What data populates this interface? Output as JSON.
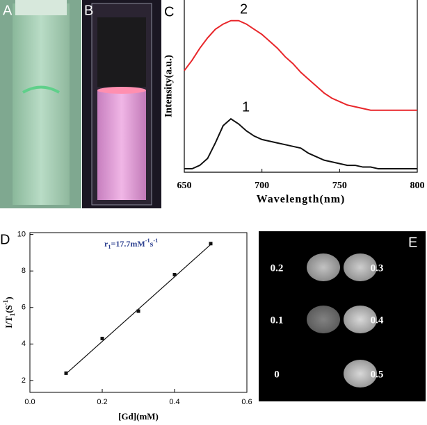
{
  "chart_data": [
    {
      "type": "line",
      "panel_label": "C",
      "x_label": "Wavelength(nm)",
      "y_label": "Intensity(a.u.)",
      "xlim": [
        650,
        800
      ],
      "xticks": [
        650,
        700,
        750,
        800
      ],
      "ylim": [
        0,
        1
      ],
      "x": [
        650,
        655,
        660,
        665,
        670,
        675,
        680,
        685,
        690,
        695,
        700,
        705,
        710,
        715,
        720,
        725,
        730,
        735,
        740,
        745,
        750,
        755,
        760,
        765,
        770,
        775,
        780,
        785,
        790,
        795,
        800
      ],
      "annotations": [
        "2",
        "1"
      ],
      "series": [
        {
          "color": "#e8262a",
          "values": [
            0.59,
            0.65,
            0.72,
            0.78,
            0.83,
            0.86,
            0.88,
            0.88,
            0.86,
            0.83,
            0.8,
            0.76,
            0.72,
            0.67,
            0.63,
            0.58,
            0.54,
            0.5,
            0.46,
            0.43,
            0.41,
            0.39,
            0.38,
            0.37,
            0.36,
            0.36,
            0.36,
            0.36,
            0.36,
            0.36,
            0.36
          ]
        },
        {
          "color": "#111111",
          "values": [
            0.02,
            0.02,
            0.04,
            0.08,
            0.17,
            0.27,
            0.31,
            0.28,
            0.24,
            0.21,
            0.19,
            0.18,
            0.17,
            0.16,
            0.15,
            0.14,
            0.11,
            0.09,
            0.07,
            0.06,
            0.05,
            0.04,
            0.04,
            0.03,
            0.03,
            0.02,
            0.02,
            0.02,
            0.02,
            0.02,
            0.02
          ]
        }
      ]
    },
    {
      "type": "scatter",
      "panel_label": "D",
      "x_label": "[Gd](mM)",
      "y_label": [
        "I/T",
        "1",
        "(S",
        "-1",
        ")"
      ],
      "annotation": [
        "r",
        "1",
        "=17.7mM",
        "-1",
        "s",
        "-1"
      ],
      "xlim": [
        0,
        0.6
      ],
      "xticks": [
        {
          "value": 0,
          "label": "0.0"
        },
        0.2,
        0.4,
        0.6
      ],
      "ylim": [
        1.35,
        10.1
      ],
      "yticks": [
        2,
        4,
        6,
        8,
        10
      ],
      "series": [
        {
          "style": "markers",
          "color": "#111111",
          "x": [
            0.1,
            0.2,
            0.3,
            0.4,
            0.5
          ],
          "values": [
            2.4,
            4.3,
            5.8,
            7.8,
            9.5
          ]
        },
        {
          "style": "line",
          "color": "#111111",
          "x": [
            0.1,
            0.5
          ],
          "values": [
            2.37,
            9.45
          ]
        }
      ]
    }
  ],
  "panels": {
    "a": "A",
    "b": "B",
    "e": {
      "label": "E",
      "samples": [
        "0.2",
        "0.3",
        "0.1",
        "0.4",
        "0",
        "0.5"
      ]
    }
  }
}
